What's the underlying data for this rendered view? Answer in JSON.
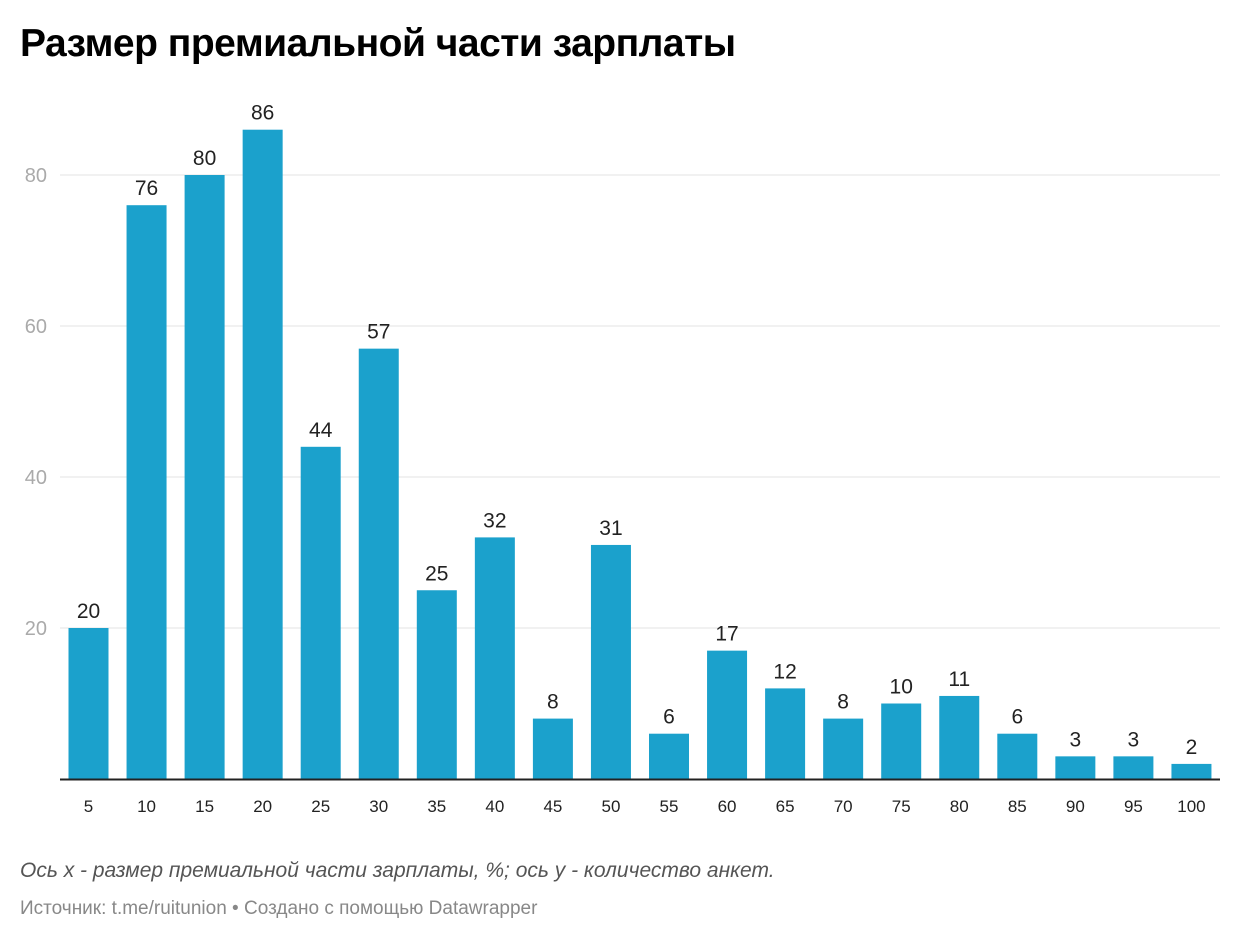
{
  "title": "Размер премиальной части зарплаты",
  "note": "Ось x - размер премиальной части зарплаты, %; ось y - количество анкет.",
  "footer": "Источник: t.me/ruitunion • Создано с помощью Datawrapper",
  "colors": {
    "bar": "#1ba1cc",
    "grid": "#e3e3e3",
    "axis": "#222222"
  },
  "chart_data": {
    "type": "bar",
    "title": "Размер премиальной части зарплаты",
    "categories": [
      "5",
      "10",
      "15",
      "20",
      "25",
      "30",
      "35",
      "40",
      "45",
      "50",
      "55",
      "60",
      "65",
      "70",
      "75",
      "80",
      "85",
      "90",
      "95",
      "100"
    ],
    "values": [
      20,
      76,
      80,
      86,
      44,
      57,
      25,
      32,
      8,
      31,
      6,
      17,
      12,
      8,
      10,
      11,
      6,
      3,
      3,
      2
    ],
    "yticks": [
      20,
      40,
      60,
      80
    ],
    "ylim": [
      0,
      86
    ],
    "grid": true,
    "data_labels": true,
    "legend": "none"
  }
}
